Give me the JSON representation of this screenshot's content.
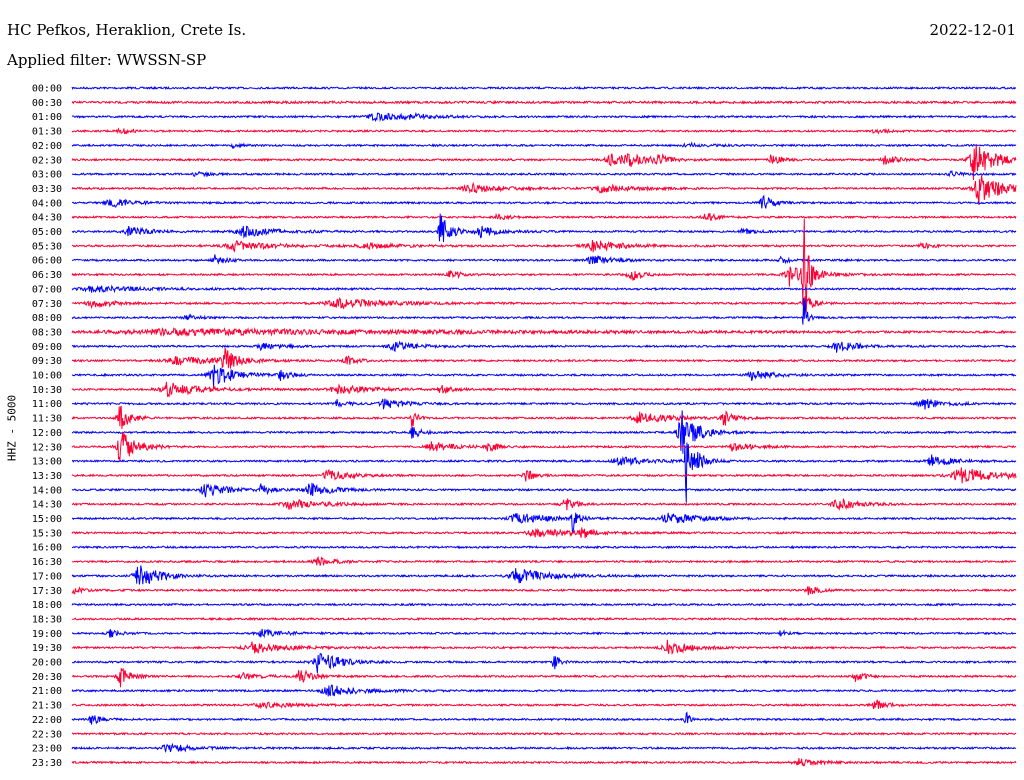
{
  "header": {
    "station": "HC Pefkos, Heraklion, Crete Is.",
    "filter": "Applied filter: WWSSN-SP",
    "date": "2022-12-01"
  },
  "chart_data": {
    "type": "line",
    "title": "HC Pefkos, Heraklion, Crete Is.",
    "subtitle": "Applied filter: WWSSN-SP",
    "date": "2022-12-01",
    "ylabel": "HHZ - 5000",
    "xlabel": "",
    "colors": {
      "even": "#0000ff",
      "odd": "#ff0033"
    },
    "rows": [
      {
        "label": "00:00",
        "events": []
      },
      {
        "label": "00:30",
        "events": [
          [
            0.21,
            0.25,
            2,
            0.03
          ]
        ]
      },
      {
        "label": "01:00",
        "events": [
          [
            0.32,
            4,
            0.03
          ],
          [
            0.36,
            2,
            0.02
          ]
        ]
      },
      {
        "label": "01:30",
        "events": [
          [
            0.05,
            3,
            0.01
          ],
          [
            0.85,
            3,
            0.01
          ]
        ]
      },
      {
        "label": "02:00",
        "events": [
          [
            0.17,
            2,
            0.01
          ],
          [
            0.65,
            2,
            0.02
          ]
        ]
      },
      {
        "label": "02:30",
        "events": [
          [
            0.57,
            6,
            0.02
          ],
          [
            0.59,
            5,
            0.02
          ],
          [
            0.62,
            5,
            0.01
          ],
          [
            0.74,
            6,
            0.01
          ],
          [
            0.86,
            7,
            0.01
          ],
          [
            0.955,
            20,
            0.02
          ]
        ]
      },
      {
        "label": "03:00",
        "events": [
          [
            0.13,
            3,
            0.01
          ],
          [
            0.93,
            3,
            0.01
          ]
        ]
      },
      {
        "label": "03:30",
        "events": [
          [
            0.42,
            5,
            0.03
          ],
          [
            0.56,
            4,
            0.03
          ],
          [
            0.96,
            18,
            0.02
          ]
        ]
      },
      {
        "label": "04:00",
        "events": [
          [
            0.04,
            5,
            0.02
          ],
          [
            0.73,
            10,
            0.01
          ]
        ]
      },
      {
        "label": "04:30",
        "events": [
          [
            0.45,
            3,
            0.01
          ],
          [
            0.67,
            6,
            0.01
          ]
        ]
      },
      {
        "label": "05:00",
        "events": [
          [
            0.06,
            5,
            0.02
          ],
          [
            0.18,
            6,
            0.03
          ],
          [
            0.39,
            18,
            0.01
          ],
          [
            0.43,
            6,
            0.02
          ],
          [
            0.71,
            3,
            0.01
          ]
        ]
      },
      {
        "label": "05:30",
        "events": [
          [
            0.17,
            5,
            0.04
          ],
          [
            0.31,
            3,
            0.03
          ],
          [
            0.55,
            6,
            0.03
          ],
          [
            0.9,
            3,
            0.01
          ]
        ]
      },
      {
        "label": "06:00",
        "events": [
          [
            0.15,
            6,
            0.01
          ],
          [
            0.55,
            5,
            0.02
          ],
          [
            0.75,
            3,
            0.01
          ]
        ]
      },
      {
        "label": "06:30",
        "events": [
          [
            0.4,
            5,
            0.01
          ],
          [
            0.59,
            8,
            0.01
          ],
          [
            0.76,
            12,
            0.02
          ],
          [
            0.775,
            80,
            0.004
          ]
        ]
      },
      {
        "label": "07:00",
        "events": [
          [
            0.02,
            3,
            0.05
          ]
        ]
      },
      {
        "label": "07:30",
        "events": [
          [
            0.02,
            5,
            0.02
          ],
          [
            0.28,
            5,
            0.05
          ],
          [
            0.775,
            8,
            0.01
          ]
        ]
      },
      {
        "label": "08:00",
        "events": [
          [
            0.12,
            3,
            0.01
          ],
          [
            0.775,
            30,
            0.003
          ]
        ]
      },
      {
        "label": "08:30",
        "events": [
          [
            0.1,
            3,
            0.3
          ]
        ]
      },
      {
        "label": "09:00",
        "events": [
          [
            0.2,
            3,
            0.02
          ],
          [
            0.34,
            5,
            0.02
          ],
          [
            0.81,
            6,
            0.02
          ]
        ]
      },
      {
        "label": "09:30",
        "events": [
          [
            0.11,
            4,
            0.05
          ],
          [
            0.16,
            15,
            0.01
          ],
          [
            0.29,
            5,
            0.01
          ]
        ]
      },
      {
        "label": "10:00",
        "events": [
          [
            0.15,
            12,
            0.02
          ],
          [
            0.22,
            6,
            0.01
          ],
          [
            0.72,
            5,
            0.02
          ]
        ]
      },
      {
        "label": "10:30",
        "events": [
          [
            0.1,
            8,
            0.03
          ],
          [
            0.28,
            5,
            0.03
          ],
          [
            0.39,
            5,
            0.01
          ]
        ]
      },
      {
        "label": "11:00",
        "events": [
          [
            0.28,
            4,
            0.01
          ],
          [
            0.33,
            5,
            0.02
          ],
          [
            0.9,
            6,
            0.02
          ]
        ]
      },
      {
        "label": "11:30",
        "events": [
          [
            0.05,
            14,
            0.01
          ],
          [
            0.36,
            10,
            0.005
          ],
          [
            0.6,
            6,
            0.03
          ],
          [
            0.69,
            8,
            0.01
          ]
        ]
      },
      {
        "label": "12:00",
        "events": [
          [
            0.36,
            6,
            0.01
          ],
          [
            0.645,
            24,
            0.015
          ]
        ]
      },
      {
        "label": "12:30",
        "events": [
          [
            0.05,
            20,
            0.015
          ],
          [
            0.38,
            6,
            0.02
          ],
          [
            0.44,
            5,
            0.01
          ],
          [
            0.7,
            5,
            0.02
          ]
        ]
      },
      {
        "label": "13:00",
        "events": [
          [
            0.65,
            50,
            0.004
          ],
          [
            0.66,
            10,
            0.01
          ],
          [
            0.58,
            4,
            0.03
          ],
          [
            0.91,
            6,
            0.02
          ]
        ]
      },
      {
        "label": "13:30",
        "events": [
          [
            0.27,
            6,
            0.02
          ],
          [
            0.48,
            6,
            0.01
          ],
          [
            0.94,
            8,
            0.04
          ]
        ]
      },
      {
        "label": "14:00",
        "events": [
          [
            0.14,
            8,
            0.02
          ],
          [
            0.2,
            5,
            0.01
          ],
          [
            0.25,
            8,
            0.02
          ]
        ]
      },
      {
        "label": "14:30",
        "events": [
          [
            0.23,
            5,
            0.03
          ],
          [
            0.52,
            8,
            0.01
          ],
          [
            0.81,
            6,
            0.02
          ]
        ]
      },
      {
        "label": "15:00",
        "events": [
          [
            0.47,
            6,
            0.03
          ],
          [
            0.53,
            14,
            0.005
          ],
          [
            0.63,
            6,
            0.03
          ]
        ]
      },
      {
        "label": "15:30",
        "events": [
          [
            0.49,
            4,
            0.04
          ],
          [
            0.54,
            5,
            0.01
          ]
        ]
      },
      {
        "label": "16:00",
        "events": []
      },
      {
        "label": "16:30",
        "events": [
          [
            0.26,
            4,
            0.02
          ]
        ]
      },
      {
        "label": "17:00",
        "events": [
          [
            0.07,
            12,
            0.02
          ],
          [
            0.47,
            8,
            0.03
          ]
        ]
      },
      {
        "label": "17:30",
        "events": [
          [
            0.0,
            4,
            0.01
          ],
          [
            0.78,
            5,
            0.01
          ]
        ]
      },
      {
        "label": "18:00",
        "events": []
      },
      {
        "label": "18:30",
        "events": []
      },
      {
        "label": "19:00",
        "events": [
          [
            0.04,
            4,
            0.01
          ],
          [
            0.2,
            4,
            0.02
          ],
          [
            0.75,
            4,
            0.005
          ]
        ]
      },
      {
        "label": "19:30",
        "events": [
          [
            0.19,
            6,
            0.03
          ],
          [
            0.63,
            8,
            0.02
          ]
        ]
      },
      {
        "label": "20:00",
        "events": [
          [
            0.26,
            12,
            0.02
          ],
          [
            0.51,
            10,
            0.005
          ]
        ]
      },
      {
        "label": "20:30",
        "events": [
          [
            0.05,
            12,
            0.01
          ],
          [
            0.18,
            3,
            0.02
          ],
          [
            0.24,
            10,
            0.01
          ],
          [
            0.83,
            5,
            0.01
          ]
        ]
      },
      {
        "label": "21:00",
        "events": [
          [
            0.27,
            6,
            0.03
          ]
        ]
      },
      {
        "label": "21:30",
        "events": [
          [
            0.2,
            3,
            0.03
          ],
          [
            0.85,
            6,
            0.01
          ]
        ]
      },
      {
        "label": "22:00",
        "events": [
          [
            0.02,
            5,
            0.01
          ],
          [
            0.65,
            8,
            0.005
          ]
        ]
      },
      {
        "label": "22:30",
        "events": []
      },
      {
        "label": "23:00",
        "events": [
          [
            0.1,
            4,
            0.03
          ]
        ]
      },
      {
        "label": "23:30",
        "events": [
          [
            0.77,
            4,
            0.02
          ]
        ]
      }
    ]
  }
}
